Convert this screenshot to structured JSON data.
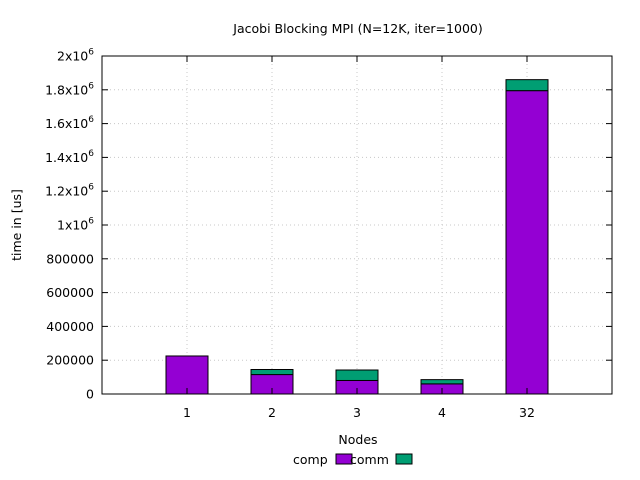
{
  "chart_data": {
    "type": "bar",
    "stacked": true,
    "title": "Jacobi Blocking MPI  (N=12K, iter=1000)",
    "xlabel": "Nodes",
    "ylabel": "time in [us]",
    "categories": [
      "1",
      "2",
      "3",
      "4",
      "32"
    ],
    "ylim": [
      0,
      2000000
    ],
    "y_ticks": [
      {
        "value": 0,
        "label": "0",
        "exp": ""
      },
      {
        "value": 200000,
        "label": "200000",
        "exp": ""
      },
      {
        "value": 400000,
        "label": "400000",
        "exp": ""
      },
      {
        "value": 600000,
        "label": "600000",
        "exp": ""
      },
      {
        "value": 800000,
        "label": "800000",
        "exp": ""
      },
      {
        "value": 1000000,
        "label": "1x10",
        "exp": "6"
      },
      {
        "value": 1200000,
        "label": "1.2x10",
        "exp": "6"
      },
      {
        "value": 1400000,
        "label": "1.4x10",
        "exp": "6"
      },
      {
        "value": 1600000,
        "label": "1.6x10",
        "exp": "6"
      },
      {
        "value": 1800000,
        "label": "1.8x10",
        "exp": "6"
      },
      {
        "value": 2000000,
        "label": "2x10",
        "exp": "6"
      }
    ],
    "series": [
      {
        "name": "comp",
        "color": "#9400d3",
        "values": [
          225000,
          115000,
          80000,
          60000,
          1795000
        ]
      },
      {
        "name": "comm",
        "color": "#009e73",
        "values": [
          0,
          30000,
          62000,
          25000,
          65000
        ]
      }
    ],
    "grid": true,
    "legend_position": "bottom-center"
  }
}
